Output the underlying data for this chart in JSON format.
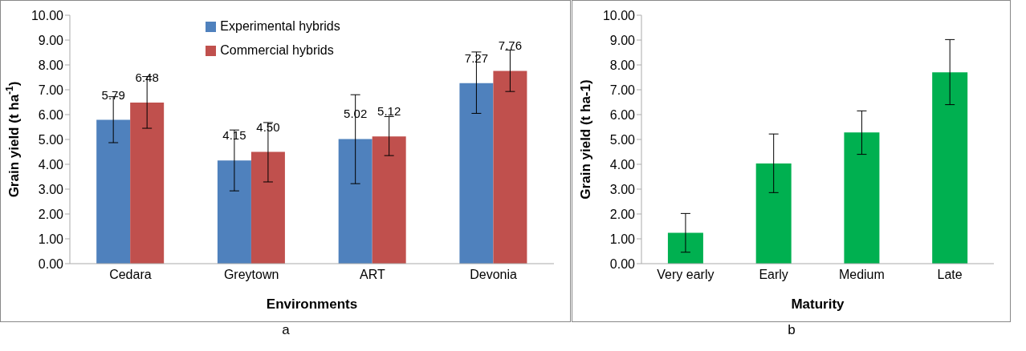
{
  "chart_data": [
    {
      "type": "bar",
      "xlabel": "Environments",
      "ylabel": "Grain yield (t ha$^{-1}$)",
      "categories": [
        "Cedara",
        "Greytown",
        "ART",
        "Devonia"
      ],
      "series": [
        {
          "name": "Experimental hybrids",
          "color": "#4f81bd",
          "values": [
            5.79,
            4.15,
            5.02,
            7.27
          ],
          "value_labels": [
            "5.79",
            "4.15",
            "5.02",
            "7.27"
          ],
          "errors": [
            [
              4.87,
              6.72
            ],
            [
              2.93,
              5.38
            ],
            [
              3.22,
              6.8
            ],
            [
              6.05,
              8.52
            ]
          ]
        },
        {
          "name": "Commercial hybrids",
          "color": "#c0504d",
          "values": [
            6.48,
            4.5,
            5.12,
            7.76
          ],
          "value_labels": [
            "6.48",
            "4.50",
            "5.12",
            "7.76"
          ],
          "errors": [
            [
              5.45,
              7.53
            ],
            [
              3.29,
              5.68
            ],
            [
              4.35,
              5.92
            ],
            [
              6.93,
              8.6
            ]
          ]
        }
      ],
      "ylim": [
        0,
        10
      ],
      "yticks": [
        {
          "value": 0,
          "label": "0.00"
        },
        {
          "value": 1,
          "label": "1.00"
        },
        {
          "value": 2,
          "label": "2.00"
        },
        {
          "value": 3,
          "label": "3.00"
        },
        {
          "value": 4,
          "label": "4.00"
        },
        {
          "value": 5,
          "label": "5.00"
        },
        {
          "value": 6,
          "label": "6.00"
        },
        {
          "value": 7,
          "label": "7.00"
        },
        {
          "value": 8,
          "label": "8.00"
        },
        {
          "value": 9,
          "label": "9.00"
        },
        {
          "value": 10,
          "label": "10.00"
        }
      ],
      "grid": false,
      "legend": "top",
      "annotations": [
        "a"
      ]
    },
    {
      "type": "bar",
      "xlabel": "Maturity",
      "ylabel": "Grain yield (t ha-1)",
      "categories": [
        "Very early",
        "Early",
        "Medium",
        "Late"
      ],
      "series": [
        {
          "color": "#00b050",
          "values": [
            1.24,
            4.03,
            5.28,
            7.7
          ],
          "errors": [
            [
              0.46,
              2.02
            ],
            [
              2.86,
              5.22
            ],
            [
              4.4,
              6.15
            ],
            [
              6.4,
              9.02
            ]
          ]
        }
      ],
      "ylim": [
        0,
        10
      ],
      "yticks": [
        {
          "value": 0,
          "label": "0.00"
        },
        {
          "value": 1,
          "label": "1.00"
        },
        {
          "value": 2,
          "label": "2.00"
        },
        {
          "value": 3,
          "label": "3.00"
        },
        {
          "value": 4,
          "label": "4.00"
        },
        {
          "value": 5,
          "label": "5.00"
        },
        {
          "value": 6,
          "label": "6.00"
        },
        {
          "value": 7,
          "label": "7.00"
        },
        {
          "value": 8,
          "label": "8.00"
        },
        {
          "value": 9,
          "label": "9.00"
        },
        {
          "value": 10,
          "label": "10.00"
        }
      ],
      "grid": false,
      "legend": false,
      "annotations": [
        "b"
      ]
    }
  ]
}
